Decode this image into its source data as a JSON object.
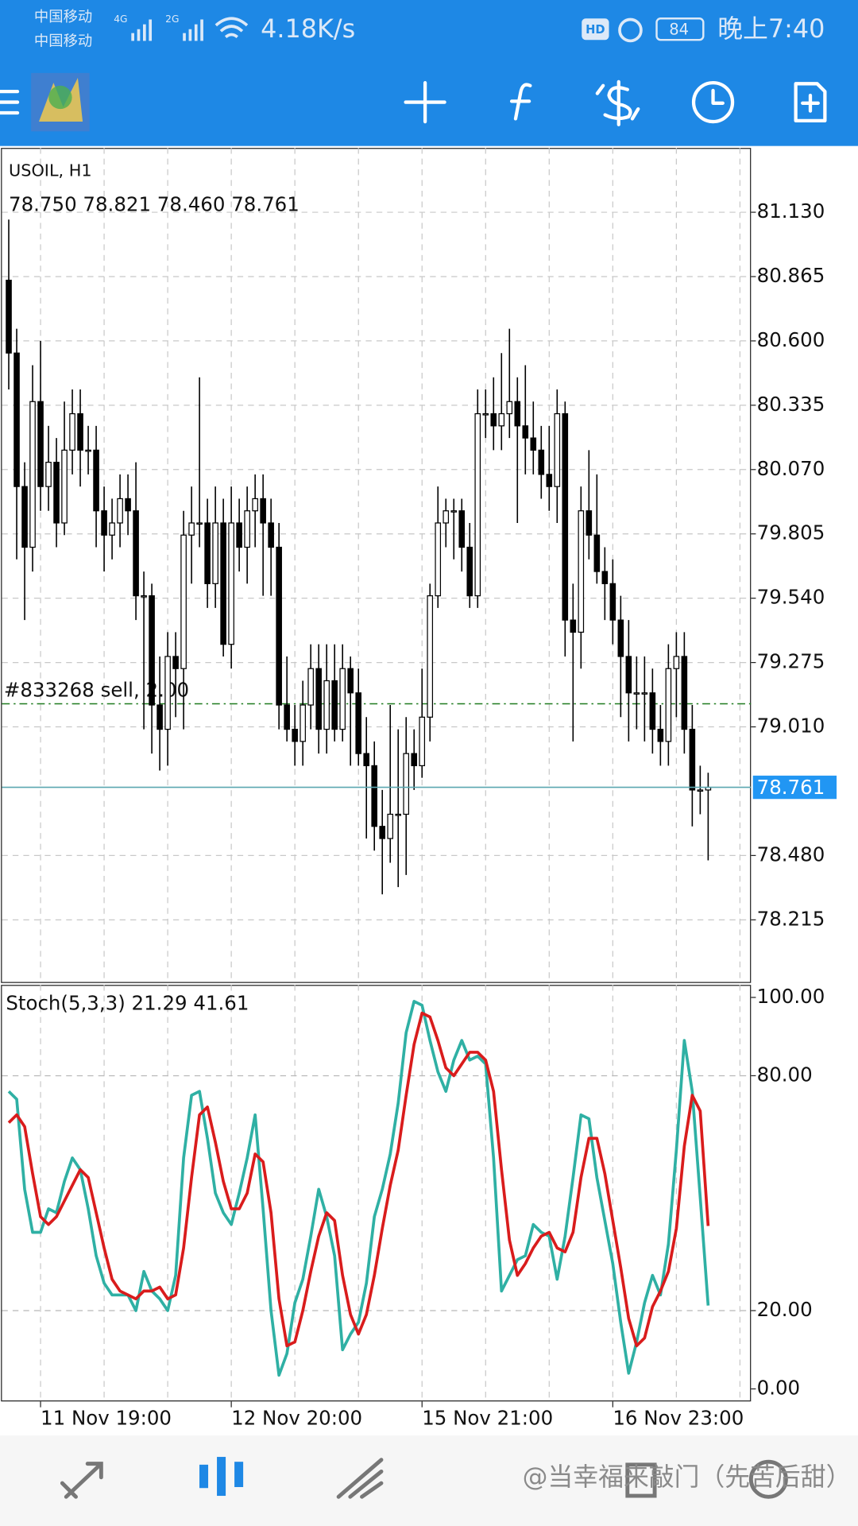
{
  "status": {
    "carrier1": "中国移动",
    "carrier2": "中国移动",
    "net1": "4G",
    "net2": "2G",
    "speed": "4.18K/s",
    "hd": "HD",
    "battery": "84",
    "time": "晚上7:40"
  },
  "footer": {
    "watermark": "@当幸福来敲门（先苦后甜）"
  },
  "chart_data": [
    {
      "type": "candlestick",
      "title": "USOIL, H1",
      "ohlc_text": "78.750 78.821 78.460 78.761",
      "open": [
        80.85,
        80.55,
        80.0,
        79.75,
        80.35,
        80.0,
        80.1,
        79.85,
        80.15,
        80.3,
        80.15,
        80.15,
        79.9,
        79.8,
        79.85,
        79.95,
        79.9,
        79.55,
        79.55,
        79.1,
        79.0,
        79.3,
        79.25,
        79.8,
        79.85,
        79.85,
        79.6,
        79.85,
        79.35,
        79.85,
        79.75,
        79.9,
        79.95,
        79.85,
        79.75,
        79.1,
        79.0,
        78.95,
        79.1,
        79.25,
        79.0,
        79.2,
        79.0,
        79.25,
        79.15,
        78.9,
        78.85,
        78.6,
        78.55,
        78.65,
        78.65,
        78.9,
        78.85,
        79.05,
        79.55,
        79.85,
        79.9,
        79.9,
        79.75,
        79.55,
        80.3,
        80.3,
        80.25,
        80.3,
        80.35,
        80.25,
        80.2,
        80.15,
        80.05,
        80.0,
        80.3,
        79.45,
        79.4,
        79.9,
        79.8,
        79.65,
        79.6,
        79.45,
        79.3,
        79.15,
        79.15,
        79.15,
        79.0,
        78.95,
        79.25,
        79.3,
        79.0,
        78.75,
        78.75
      ],
      "high": [
        81.1,
        80.65,
        80.1,
        80.5,
        80.6,
        80.25,
        80.2,
        80.35,
        80.4,
        80.4,
        80.25,
        80.25,
        80.0,
        79.95,
        80.05,
        80.05,
        80.1,
        79.65,
        79.6,
        79.3,
        79.4,
        79.4,
        79.9,
        80.0,
        80.45,
        79.95,
        80.0,
        79.95,
        80.0,
        79.95,
        80.0,
        80.05,
        80.05,
        79.95,
        79.85,
        79.3,
        79.1,
        79.2,
        79.35,
        79.35,
        79.35,
        79.35,
        79.35,
        79.3,
        79.25,
        79.05,
        78.95,
        78.75,
        79.1,
        79.0,
        79.05,
        79.0,
        79.25,
        79.6,
        80.0,
        79.95,
        79.95,
        79.95,
        79.85,
        80.4,
        80.4,
        80.45,
        80.55,
        80.65,
        80.45,
        80.5,
        80.35,
        80.25,
        80.25,
        80.4,
        80.35,
        79.6,
        80.0,
        80.15,
        80.05,
        79.75,
        79.7,
        79.55,
        79.45,
        79.3,
        79.3,
        79.25,
        79.1,
        79.35,
        79.4,
        79.4,
        79.1,
        78.85,
        78.821
      ],
      "low": [
        80.4,
        79.7,
        79.45,
        79.65,
        79.9,
        79.9,
        79.75,
        79.8,
        80.05,
        80.0,
        80.05,
        79.75,
        79.65,
        79.7,
        79.75,
        79.8,
        79.45,
        79.0,
        78.9,
        78.83,
        78.85,
        79.05,
        79.0,
        79.6,
        79.75,
        79.5,
        79.5,
        79.3,
        79.25,
        79.65,
        79.6,
        79.75,
        79.55,
        79.55,
        79.0,
        78.95,
        78.85,
        78.85,
        79.0,
        78.9,
        78.9,
        78.95,
        78.95,
        78.85,
        78.85,
        78.55,
        78.5,
        78.32,
        78.45,
        78.35,
        78.4,
        78.75,
        78.8,
        78.95,
        79.5,
        79.75,
        79.7,
        79.65,
        79.5,
        79.5,
        80.2,
        80.15,
        80.15,
        80.2,
        79.85,
        80.05,
        80.05,
        79.95,
        79.9,
        79.85,
        79.3,
        78.95,
        79.25,
        79.7,
        79.6,
        79.45,
        79.35,
        79.05,
        78.95,
        79.0,
        78.95,
        78.9,
        78.85,
        78.85,
        79.05,
        78.9,
        78.6,
        78.65,
        78.46
      ],
      "close": [
        80.55,
        80.0,
        79.75,
        80.35,
        80.0,
        80.1,
        79.85,
        80.15,
        80.3,
        80.15,
        80.15,
        79.9,
        79.8,
        79.85,
        79.95,
        79.9,
        79.55,
        79.55,
        79.1,
        79.0,
        79.3,
        79.25,
        79.8,
        79.85,
        79.85,
        79.6,
        79.85,
        79.35,
        79.85,
        79.75,
        79.9,
        79.95,
        79.85,
        79.75,
        79.1,
        79.0,
        78.95,
        79.1,
        79.25,
        79.0,
        79.2,
        79.0,
        79.25,
        79.15,
        78.9,
        78.85,
        78.6,
        78.55,
        78.65,
        78.65,
        78.9,
        78.85,
        79.05,
        79.55,
        79.85,
        79.9,
        79.9,
        79.75,
        79.55,
        80.3,
        80.3,
        80.25,
        80.3,
        80.35,
        80.25,
        80.2,
        80.15,
        80.05,
        80.0,
        80.3,
        79.45,
        79.4,
        79.9,
        79.8,
        79.65,
        79.6,
        79.45,
        79.3,
        79.15,
        79.15,
        79.15,
        79.0,
        78.95,
        79.25,
        79.3,
        79.0,
        78.75,
        78.75,
        78.761
      ],
      "ylim": [
        77.955,
        81.395
      ],
      "yticks": [
        {
          "value": 78.215,
          "label": "78.215"
        },
        {
          "value": 78.48,
          "label": "78.480"
        },
        {
          "value": 79.01,
          "label": "79.010"
        },
        {
          "value": 79.275,
          "label": "79.275"
        },
        {
          "value": 79.54,
          "label": "79.540"
        },
        {
          "value": 79.805,
          "label": "79.805"
        },
        {
          "value": 80.07,
          "label": "80.070"
        },
        {
          "value": 80.335,
          "label": "80.335"
        },
        {
          "value": 80.6,
          "label": "80.600"
        },
        {
          "value": 80.865,
          "label": "80.865"
        },
        {
          "value": 81.13,
          "label": "81.130"
        }
      ],
      "current_price": 78.761,
      "current_color": "#5aa7b0",
      "order_line": {
        "label": "#833268 sell, 2.00",
        "value": 79.105,
        "color": "#1f7a1f"
      },
      "xticks": [
        {
          "value": 4,
          "label": "11 Nov 19:00"
        },
        {
          "value": 28,
          "label": "12 Nov 20:00"
        },
        {
          "value": 52,
          "label": "15 Nov 21:00"
        },
        {
          "value": 76,
          "label": "16 Nov 23:00"
        }
      ],
      "grid": true
    },
    {
      "type": "line",
      "title": "Stoch(5,3,3) 21.29 41.61",
      "series": [
        {
          "color": "#2fb0a4",
          "values": [
            76,
            74,
            51,
            40,
            40,
            46,
            45,
            53,
            59,
            56,
            46,
            34,
            27,
            24,
            24,
            24,
            20,
            30,
            25,
            23,
            20,
            29,
            59,
            75,
            76,
            64,
            50,
            45,
            42,
            50,
            59,
            70,
            46,
            20,
            3.5,
            9,
            22,
            28,
            39,
            51,
            44,
            34,
            10,
            14,
            17,
            27,
            44,
            51,
            60,
            73,
            91,
            99,
            98,
            89,
            81,
            76,
            84,
            89,
            84,
            85,
            83,
            59,
            25,
            29,
            33,
            34,
            42,
            40,
            39,
            28,
            39,
            54,
            70,
            69,
            54,
            43,
            32,
            17,
            4,
            12,
            22,
            29,
            24,
            37,
            61,
            89,
            76,
            49,
            21.29
          ]
        },
        {
          "color": "#d91c1c",
          "values": [
            68,
            70,
            67,
            55,
            44,
            42,
            44,
            48,
            52,
            56,
            54,
            45,
            36,
            28,
            25,
            24,
            23,
            25,
            25,
            26,
            23,
            24,
            36,
            54,
            70,
            72,
            63,
            53,
            46,
            46,
            50,
            60,
            58,
            45,
            23,
            11,
            12,
            20,
            30,
            39,
            45,
            43,
            29,
            19,
            14,
            19,
            29,
            41,
            52,
            61,
            75,
            88,
            96,
            95,
            89,
            82,
            80,
            83,
            86,
            86,
            84,
            76,
            56,
            38,
            29,
            32,
            36,
            39,
            40,
            36,
            35,
            40,
            54,
            64,
            64,
            55,
            43,
            31,
            18,
            11,
            13,
            21,
            25,
            30,
            41,
            62,
            75,
            71,
            41.61
          ]
        }
      ],
      "ylim": [
        -3.2,
        103.2
      ],
      "yticks": [
        {
          "value": 0,
          "label": "0.00"
        },
        {
          "value": 20,
          "label": "20.00"
        },
        {
          "value": 80,
          "label": "80.00"
        },
        {
          "value": 100,
          "label": "100.00"
        }
      ],
      "grid_values": [
        20,
        80
      ]
    }
  ]
}
